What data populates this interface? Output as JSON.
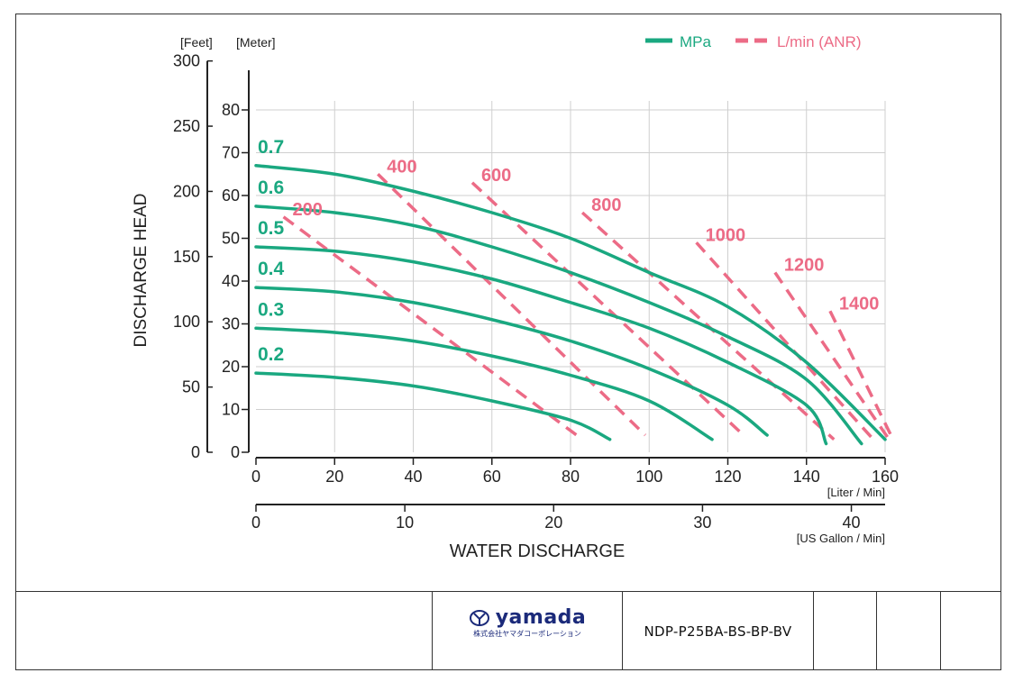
{
  "chart_data": {
    "type": "line",
    "xlabel": "WATER DISCHARGE",
    "ylabel": "DISCHARGE HEAD",
    "x_unit_primary": "[Liter / Min]",
    "x_unit_secondary": "[US Gallon / Min]",
    "y_unit_left": "[Feet]",
    "y_unit_right": "[Meter]",
    "xlim": [
      0,
      160
    ],
    "x_ticks_liter": [
      0,
      20,
      40,
      60,
      80,
      100,
      120,
      140,
      160
    ],
    "x_ticks_gallon": [
      0,
      10,
      20,
      30,
      40
    ],
    "ylim_meter": [
      0,
      80
    ],
    "y_ticks_meter": [
      0,
      10,
      20,
      30,
      40,
      50,
      60,
      70,
      80
    ],
    "y_ticks_feet": [
      0,
      50,
      100,
      150,
      200,
      250,
      300
    ],
    "grid": true,
    "legend_position": "top-right",
    "legend": [
      {
        "label": "MPa",
        "style": "solid",
        "color": "#1aa880"
      },
      {
        "label": "L/min (ANR)",
        "style": "dashed",
        "color": "#ec6b86"
      }
    ],
    "series_pressure": [
      {
        "name": "0.7",
        "points": [
          [
            0,
            67
          ],
          [
            20,
            65
          ],
          [
            40,
            61
          ],
          [
            60,
            56
          ],
          [
            80,
            50
          ],
          [
            100,
            42
          ],
          [
            120,
            34
          ],
          [
            140,
            21
          ],
          [
            160,
            3
          ]
        ]
      },
      {
        "name": "0.6",
        "points": [
          [
            0,
            57.5
          ],
          [
            20,
            56
          ],
          [
            40,
            53
          ],
          [
            60,
            48
          ],
          [
            80,
            42
          ],
          [
            100,
            35
          ],
          [
            120,
            27
          ],
          [
            140,
            17
          ],
          [
            154,
            2
          ]
        ]
      },
      {
        "name": "0.5",
        "points": [
          [
            0,
            48
          ],
          [
            20,
            47
          ],
          [
            40,
            44.5
          ],
          [
            60,
            40.5
          ],
          [
            80,
            35
          ],
          [
            100,
            29
          ],
          [
            120,
            21
          ],
          [
            140,
            11
          ],
          [
            145,
            2
          ]
        ]
      },
      {
        "name": "0.4",
        "points": [
          [
            0,
            38.5
          ],
          [
            20,
            37.5
          ],
          [
            40,
            35
          ],
          [
            60,
            31
          ],
          [
            80,
            26
          ],
          [
            100,
            19.5
          ],
          [
            120,
            11
          ],
          [
            130,
            4
          ]
        ]
      },
      {
        "name": "0.3",
        "points": [
          [
            0,
            29
          ],
          [
            20,
            28
          ],
          [
            40,
            26
          ],
          [
            60,
            22.5
          ],
          [
            80,
            18
          ],
          [
            100,
            12
          ],
          [
            116,
            3
          ]
        ]
      },
      {
        "name": "0.2",
        "points": [
          [
            0,
            18.5
          ],
          [
            20,
            17.5
          ],
          [
            40,
            15.5
          ],
          [
            60,
            12
          ],
          [
            80,
            7.5
          ],
          [
            90,
            3
          ]
        ]
      }
    ],
    "series_air": [
      {
        "name": "200",
        "points": [
          [
            7,
            55
          ],
          [
            83,
            3
          ]
        ]
      },
      {
        "name": "400",
        "points": [
          [
            31,
            65
          ],
          [
            99,
            4
          ]
        ]
      },
      {
        "name": "600",
        "points": [
          [
            55,
            63
          ],
          [
            124,
            4
          ]
        ]
      },
      {
        "name": "800",
        "points": [
          [
            83,
            56
          ],
          [
            147,
            3
          ]
        ]
      },
      {
        "name": "1000",
        "points": [
          [
            112,
            49
          ],
          [
            157,
            3
          ]
        ]
      },
      {
        "name": "1200",
        "points": [
          [
            132,
            42
          ],
          [
            161,
            3
          ]
        ]
      },
      {
        "name": "1400",
        "points": [
          [
            146,
            33
          ],
          [
            162,
            3
          ]
        ]
      }
    ],
    "colors": {
      "pressure": "#1aa880",
      "air": "#ec6b86",
      "grid": "#cfcfcf",
      "axis": "#222222"
    }
  },
  "titleblock": {
    "logo_word": "yamada",
    "logo_sub": "株式会社ヤマダコーポレーション",
    "model": "NDP-P25BA-BS-BP-BV"
  }
}
